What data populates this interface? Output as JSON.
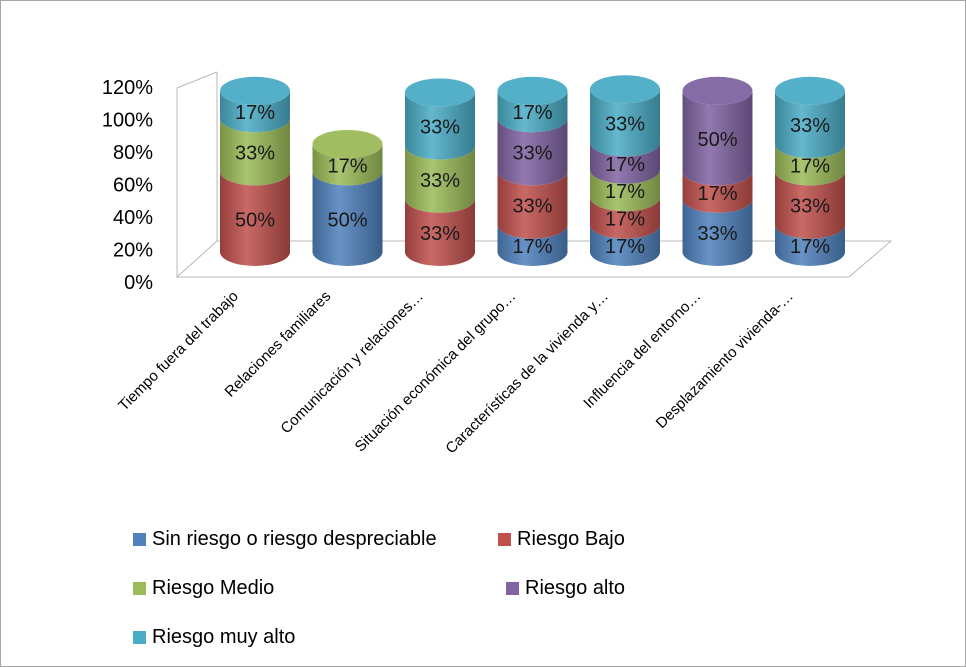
{
  "chart_data": {
    "type": "bar",
    "stacked": true,
    "style": "3d-cylinder",
    "yticks": [
      "0%",
      "20%",
      "40%",
      "60%",
      "80%",
      "100%",
      "120%"
    ],
    "ylim": [
      0,
      120
    ],
    "categories": [
      "Tiempo fuera del trabajo",
      "Relaciones familiares",
      "Comunicación y relaciones…",
      "Situación económica del grupo…",
      "Características de la vivienda y…",
      "Influencia del entorno…",
      "Desplazamiento vivienda-…"
    ],
    "series": [
      {
        "name": "Sin riesgo o riesgo despreciable",
        "color": "#4f81bd",
        "values": [
          0,
          50,
          0,
          17,
          17,
          33,
          17
        ],
        "labels": [
          "",
          "50%",
          "",
          "17%",
          "17%",
          "33%",
          "17%"
        ]
      },
      {
        "name": "Riesgo Bajo",
        "color": "#c0504d",
        "values": [
          50,
          0,
          33,
          33,
          17,
          17,
          33
        ],
        "labels": [
          "50%",
          "",
          "33%",
          "33%",
          "17%",
          "17%",
          "33%"
        ]
      },
      {
        "name": "Riesgo Medio",
        "color": "#9bbb59",
        "values": [
          33,
          17,
          33,
          0,
          17,
          0,
          17
        ],
        "labels": [
          "33%",
          "17%",
          "33%",
          "",
          "17%",
          "",
          "17%"
        ]
      },
      {
        "name": "Riesgo alto",
        "color": "#8064a2",
        "values": [
          0,
          0,
          0,
          33,
          17,
          50,
          0
        ],
        "labels": [
          "",
          "",
          "",
          "33%",
          "17%",
          "50%",
          ""
        ]
      },
      {
        "name": "Riesgo muy alto",
        "color": "#4bacc6",
        "values": [
          17,
          0,
          33,
          17,
          33,
          0,
          33
        ],
        "labels": [
          "17%",
          "",
          "33%",
          "17%",
          "33%",
          "",
          "33%"
        ]
      }
    ],
    "legend_position": "bottom"
  }
}
